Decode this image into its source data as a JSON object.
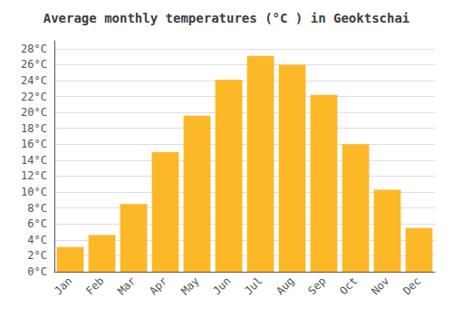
{
  "chart_data": {
    "type": "bar",
    "title": "Average monthly temperatures (°C ) in Geoktschai",
    "categories": [
      "Jan",
      "Feb",
      "Mar",
      "Apr",
      "May",
      "Jun",
      "Jul",
      "Aug",
      "Sep",
      "Oct",
      "Nov",
      "Dec"
    ],
    "values": [
      3.1,
      4.6,
      8.5,
      15.0,
      19.6,
      24.1,
      27.1,
      26.0,
      22.2,
      16.0,
      10.3,
      5.5
    ],
    "color": "#FDB827",
    "ylim": [
      0,
      29
    ],
    "yticks": [
      {
        "value": 0,
        "label": "0°C"
      },
      {
        "value": 2,
        "label": "2°C"
      },
      {
        "value": 4,
        "label": "4°C"
      },
      {
        "value": 6,
        "label": "6°C"
      },
      {
        "value": 8,
        "label": "8°C"
      },
      {
        "value": 10,
        "label": "10°C"
      },
      {
        "value": 12,
        "label": "12°C"
      },
      {
        "value": 14,
        "label": "14°C"
      },
      {
        "value": 16,
        "label": "16°C"
      },
      {
        "value": 18,
        "label": "18°C"
      },
      {
        "value": 20,
        "label": "20°C"
      },
      {
        "value": 22,
        "label": "22°C"
      },
      {
        "value": 24,
        "label": "24°C"
      },
      {
        "value": 26,
        "label": "26°C"
      },
      {
        "value": 28,
        "label": "28°C"
      }
    ],
    "grid": true
  }
}
